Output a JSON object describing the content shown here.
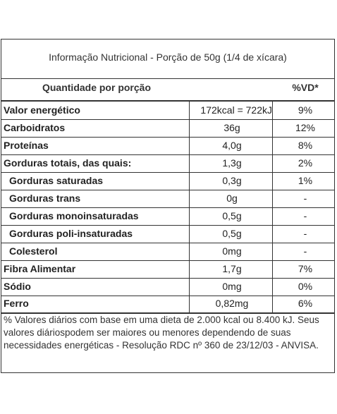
{
  "table": {
    "title": "Informação Nutricional - Porção de 50g (1/4 de xícara)",
    "header": {
      "quantity": "Quantidade por porção",
      "vd": "%VD*"
    },
    "rows": [
      {
        "label": "Valor energético",
        "qty": "172kcal = 722kJ",
        "vd": "9%"
      },
      {
        "label": "Carboidratos",
        "qty": "36g",
        "vd": "12%"
      },
      {
        "label": "Proteínas",
        "qty": "4,0g",
        "vd": "8%"
      },
      {
        "label": "Gorduras totais, das quais:",
        "qty": "1,3g",
        "vd": "2%"
      },
      {
        "label": "Gorduras saturadas",
        "qty": "0,3g",
        "vd": "1%"
      },
      {
        "label": "Gorduras trans",
        "qty": "0g",
        "vd": "-"
      },
      {
        "label": "Gorduras monoinsaturadas",
        "qty": "0,5g",
        "vd": "-"
      },
      {
        "label": "Gorduras poli-insaturadas",
        "qty": "0,5g",
        "vd": "-"
      },
      {
        "label": "Colesterol",
        "qty": "0mg",
        "vd": "-"
      },
      {
        "label": "Fibra Alimentar",
        "qty": "1,7g",
        "vd": "7%"
      },
      {
        "label": "Sódio",
        "qty": "0mg",
        "vd": "0%"
      },
      {
        "label": "Ferro",
        "qty": "0,82mg",
        "vd": "6%"
      }
    ],
    "footnote": "% Valores diários com base em uma dieta de 2.000 kcal ou 8.400 kJ. Seus valores diáriospodem ser maiores ou menores dependendo de suas necessidades energéticas - Resolução RDC nº 360 de 23/12/03 - ANVISA."
  }
}
